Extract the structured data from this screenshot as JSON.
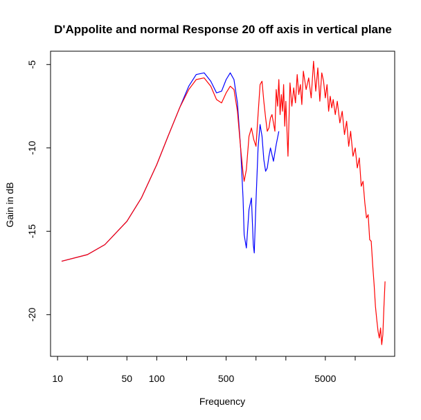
{
  "chart_data": {
    "type": "line",
    "title": "D'Appolite and normal Response 20 off axis in vertical plane",
    "xlabel": "Frequency",
    "ylabel": "Gain in dB",
    "x_scale": "log",
    "xlim": [
      8.5,
      25000
    ],
    "ylim": [
      -22.5,
      -4.2
    ],
    "x_tick_values": [
      10,
      20,
      50,
      100,
      200,
      500,
      1000,
      2000,
      5000,
      10000
    ],
    "x_tick_labels": [
      "10",
      "",
      "50",
      "100",
      "",
      "500",
      "",
      "",
      "5000",
      ""
    ],
    "y_tick_values": [
      -20,
      -15,
      -10,
      -5
    ],
    "y_tick_labels": [
      "-20",
      "-15",
      "-10",
      "-5"
    ],
    "grid": false,
    "legend": "none",
    "series": [
      {
        "color": "#0000ff",
        "x": [
          11,
          20,
          30,
          50,
          70,
          100,
          130,
          170,
          210,
          250,
          300,
          350,
          400,
          450,
          500,
          550,
          600,
          650,
          700,
          740,
          760,
          800,
          850,
          900,
          940,
          960,
          1000,
          1050,
          1100,
          1150,
          1200,
          1250,
          1300,
          1350,
          1400,
          1500,
          1600,
          1700
        ],
        "y": [
          -16.8,
          -16.4,
          -15.8,
          -14.4,
          -13.0,
          -11.0,
          -9.3,
          -7.6,
          -6.3,
          -5.6,
          -5.5,
          -6.0,
          -6.7,
          -6.6,
          -5.9,
          -5.5,
          -5.9,
          -7.3,
          -10.0,
          -13.0,
          -15.2,
          -16.0,
          -13.7,
          -13.0,
          -15.8,
          -16.3,
          -13.2,
          -10.0,
          -8.6,
          -9.3,
          -10.7,
          -11.4,
          -11.2,
          -10.5,
          -10.0,
          -10.8,
          -9.8,
          -9.0
        ]
      },
      {
        "color": "#ff0000",
        "x": [
          11,
          20,
          30,
          50,
          70,
          100,
          130,
          170,
          210,
          250,
          300,
          350,
          400,
          450,
          500,
          550,
          600,
          650,
          700,
          740,
          760,
          800,
          850,
          900,
          950,
          1000,
          1050,
          1100,
          1150,
          1200,
          1250,
          1300,
          1350,
          1400,
          1450,
          1500,
          1550,
          1600,
          1650,
          1700,
          1750,
          1800,
          1850,
          1900,
          1950,
          2000,
          2100,
          2200,
          2300,
          2400,
          2500,
          2600,
          2700,
          2800,
          2900,
          3000,
          3200,
          3400,
          3600,
          3800,
          4000,
          4200,
          4400,
          4600,
          4800,
          5000,
          5200,
          5400,
          5600,
          5800,
          6000,
          6300,
          6600,
          7000,
          7400,
          7800,
          8200,
          8600,
          9000,
          9500,
          10000,
          10500,
          11000,
          11500,
          12000,
          12500,
          13000,
          13500,
          14000,
          14500,
          15000,
          15500,
          16000,
          16500,
          17000,
          17500,
          18000,
          18500,
          19000,
          19500,
          20000
        ],
        "y": [
          -16.8,
          -16.4,
          -15.8,
          -14.4,
          -13.0,
          -11.0,
          -9.3,
          -7.6,
          -6.5,
          -5.9,
          -5.8,
          -6.3,
          -7.1,
          -7.3,
          -6.7,
          -6.3,
          -6.5,
          -7.8,
          -10.0,
          -11.5,
          -12.0,
          -11.3,
          -9.3,
          -8.8,
          -9.5,
          -9.9,
          -8.0,
          -6.2,
          -6.0,
          -7.2,
          -8.2,
          -9.0,
          -8.8,
          -8.2,
          -8.0,
          -8.5,
          -9.0,
          -6.5,
          -7.5,
          -5.9,
          -8.0,
          -6.8,
          -7.8,
          -6.2,
          -8.7,
          -7.2,
          -10.5,
          -6.1,
          -7.5,
          -6.4,
          -7.3,
          -5.6,
          -6.8,
          -6.2,
          -7.4,
          -5.4,
          -6.5,
          -5.8,
          -7.0,
          -4.8,
          -6.6,
          -5.2,
          -7.2,
          -5.5,
          -6.0,
          -7.0,
          -6.2,
          -7.8,
          -6.9,
          -7.6,
          -7.1,
          -8.0,
          -7.2,
          -8.5,
          -7.8,
          -9.2,
          -8.4,
          -9.9,
          -9.0,
          -10.5,
          -10.0,
          -11.2,
          -10.6,
          -12.3,
          -12.0,
          -13.3,
          -14.2,
          -14.0,
          -15.5,
          -15.6,
          -17.0,
          -18.2,
          -19.5,
          -20.3,
          -21.0,
          -21.4,
          -20.8,
          -21.8,
          -21.2,
          -19.5,
          -18.0
        ]
      }
    ]
  }
}
